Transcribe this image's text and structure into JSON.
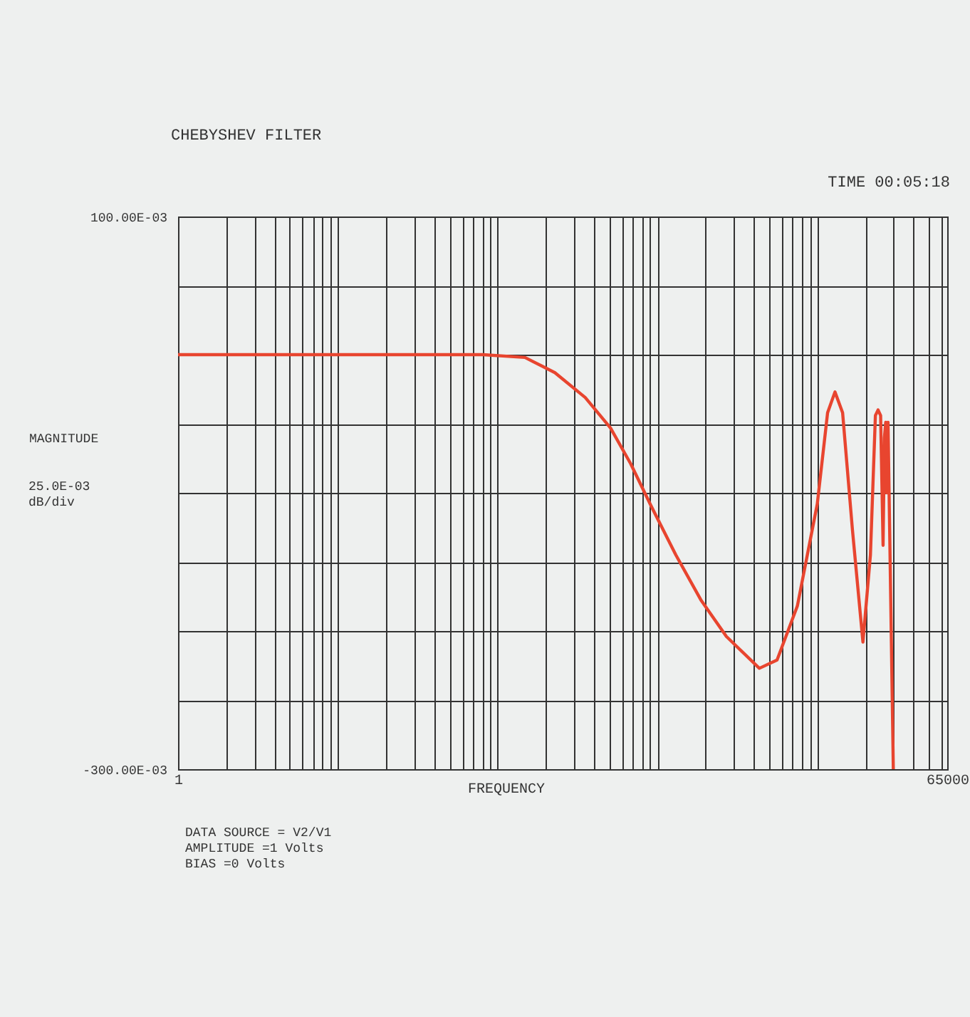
{
  "chart_data": {
    "type": "line",
    "title": "CHEBYSHEV FILTER",
    "xlabel": "FREQUENCY",
    "ylabel": "MAGNITUDE",
    "annotations": [
      "TIME   00:05:18",
      "25.0E-03\ndB/div",
      "DATA SOURCE = V2/V1\nAMPLITUDE =1 Volts\nBIAS =0 Volts"
    ],
    "log": "x",
    "grid": true,
    "legend": false,
    "marker": "none",
    "line_style": "solid",
    "xlim": [
      1,
      65000
    ],
    "ylim": [
      -0.3,
      0.1
    ],
    "xticks": [
      1,
      {
        "value": 2,
        "label": null
      },
      {
        "value": 3,
        "label": null
      },
      {
        "value": 4,
        "label": null
      },
      {
        "value": 5,
        "label": null
      },
      {
        "value": 6,
        "label": null
      },
      {
        "value": 7,
        "label": null
      },
      {
        "value": 8,
        "label": null
      },
      {
        "value": 9,
        "label": null
      },
      {
        "value": 10,
        "label": null
      },
      {
        "value": 20,
        "label": null
      },
      {
        "value": 30,
        "label": null
      },
      {
        "value": 40,
        "label": null
      },
      {
        "value": 50,
        "label": null
      },
      {
        "value": 60,
        "label": null
      },
      {
        "value": 70,
        "label": null
      },
      {
        "value": 80,
        "label": null
      },
      {
        "value": 90,
        "label": null
      },
      {
        "value": 100,
        "label": null
      },
      {
        "value": 200,
        "label": null
      },
      {
        "value": 300,
        "label": null
      },
      {
        "value": 400,
        "label": null
      },
      {
        "value": 500,
        "label": null
      },
      {
        "value": 600,
        "label": null
      },
      {
        "value": 700,
        "label": null
      },
      {
        "value": 800,
        "label": null
      },
      {
        "value": 900,
        "label": null
      },
      {
        "value": 1000,
        "label": null
      },
      {
        "value": 2000,
        "label": null
      },
      {
        "value": 3000,
        "label": null
      },
      {
        "value": 4000,
        "label": null
      },
      {
        "value": 5000,
        "label": null
      },
      {
        "value": 6000,
        "label": null
      },
      {
        "value": 7000,
        "label": null
      },
      {
        "value": 8000,
        "label": null
      },
      {
        "value": 9000,
        "label": null
      },
      {
        "value": 10000,
        "label": null
      },
      {
        "value": 20000,
        "label": null
      },
      {
        "value": 30000,
        "label": null
      },
      {
        "value": 40000,
        "label": null
      },
      {
        "value": 50000,
        "label": null
      },
      {
        "value": 60000,
        "label": null
      },
      65000
    ],
    "yticks": [
      {
        "value": 0.1,
        "label": "100.00E-03"
      },
      {
        "value": 0.05,
        "label": null
      },
      {
        "value": 0,
        "label": null
      },
      {
        "value": -0.05,
        "label": null
      },
      {
        "value": -0.1,
        "label": null
      },
      {
        "value": -0.15,
        "label": null
      },
      {
        "value": -0.2,
        "label": null
      },
      {
        "value": -0.25,
        "label": null
      },
      {
        "value": -0.3,
        "label": "-300.00E-03"
      }
    ],
    "series": [
      {
        "color": "#e8452f",
        "x": [
          1,
          10,
          81,
          148,
          228,
          353,
          508,
          680,
          908,
          1303,
          1880,
          2700,
          4340,
          5600,
          7500,
          10000,
          11600,
          12900,
          14400,
          16600,
          19300,
          21500,
          23100,
          24000,
          24900,
          25800,
          26300,
          26800,
          27200,
          27700,
          29900
        ],
        "values": [
          0,
          0,
          0,
          -0.002,
          -0.013,
          -0.031,
          -0.053,
          -0.079,
          -0.109,
          -0.145,
          -0.178,
          -0.204,
          -0.227,
          -0.221,
          -0.182,
          -0.108,
          -0.042,
          -0.027,
          -0.042,
          -0.127,
          -0.208,
          -0.145,
          -0.044,
          -0.04,
          -0.044,
          -0.138,
          -0.06,
          -0.049,
          -0.1,
          -0.049,
          -0.3
        ]
      }
    ]
  }
}
